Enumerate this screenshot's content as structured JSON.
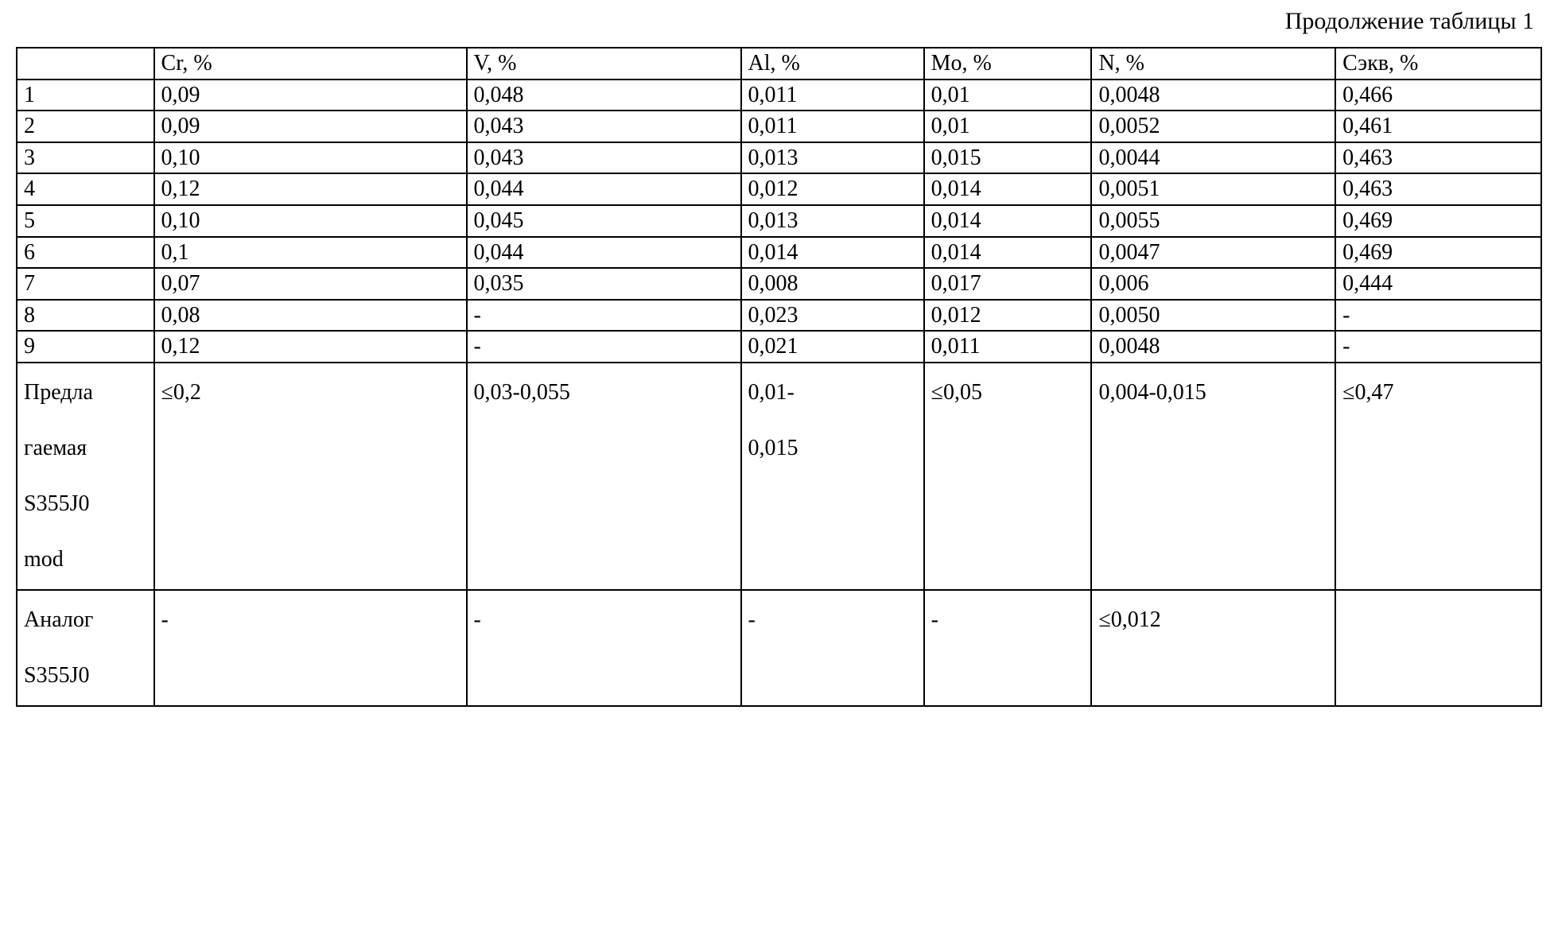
{
  "caption": "Продолжение таблицы 1",
  "table": {
    "columns": [
      "",
      "Cr, %",
      "V, %",
      "Al, %",
      "Mo, %",
      "N, %",
      "Сэкв, %"
    ],
    "rows": [
      [
        "1",
        "0,09",
        "0,048",
        "0,011",
        "0,01",
        "0,0048",
        "0,466"
      ],
      [
        "2",
        "0,09",
        "0,043",
        "0,011",
        "0,01",
        "0,0052",
        "0,461"
      ],
      [
        "3",
        "0,10",
        "0,043",
        "0,013",
        "0,015",
        "0,0044",
        "0,463"
      ],
      [
        "4",
        "0,12",
        "0,044",
        "0,012",
        "0,014",
        "0,0051",
        "0,463"
      ],
      [
        "5",
        "0,10",
        "0,045",
        "0,013",
        "0,014",
        "0,0055",
        "0,469"
      ],
      [
        "6",
        "0,1",
        "0,044",
        "0,014",
        "0,014",
        "0,0047",
        "0,469"
      ],
      [
        "7",
        "0,07",
        "0,035",
        "0,008",
        "0,017",
        "0,006",
        "0,444"
      ],
      [
        "8",
        "0,08",
        "-",
        "0,023",
        "0,012",
        "0,0050",
        "-"
      ],
      [
        "9",
        "0,12",
        "-",
        "0,021",
        "0,011",
        "0,0048",
        "-"
      ]
    ],
    "row_proposed": {
      "label": "Предла\nгаемая\nS355J0\nmod",
      "cells": [
        "≤0,2",
        "0,03-0,055",
        "0,01-\n0,015",
        "≤0,05",
        "0,004-0,015",
        "≤0,47"
      ]
    },
    "row_analog": {
      "label": "Аналог\nS355J0",
      "cells": [
        "-",
        "-",
        "-",
        "-",
        "≤0,012",
        ""
      ]
    }
  },
  "style": {
    "font_family": "Times New Roman",
    "header_fontsize_pt": 22,
    "cell_fontsize_pt": 22,
    "border_color": "#000000",
    "background_color": "#ffffff",
    "text_color": "#000000"
  }
}
